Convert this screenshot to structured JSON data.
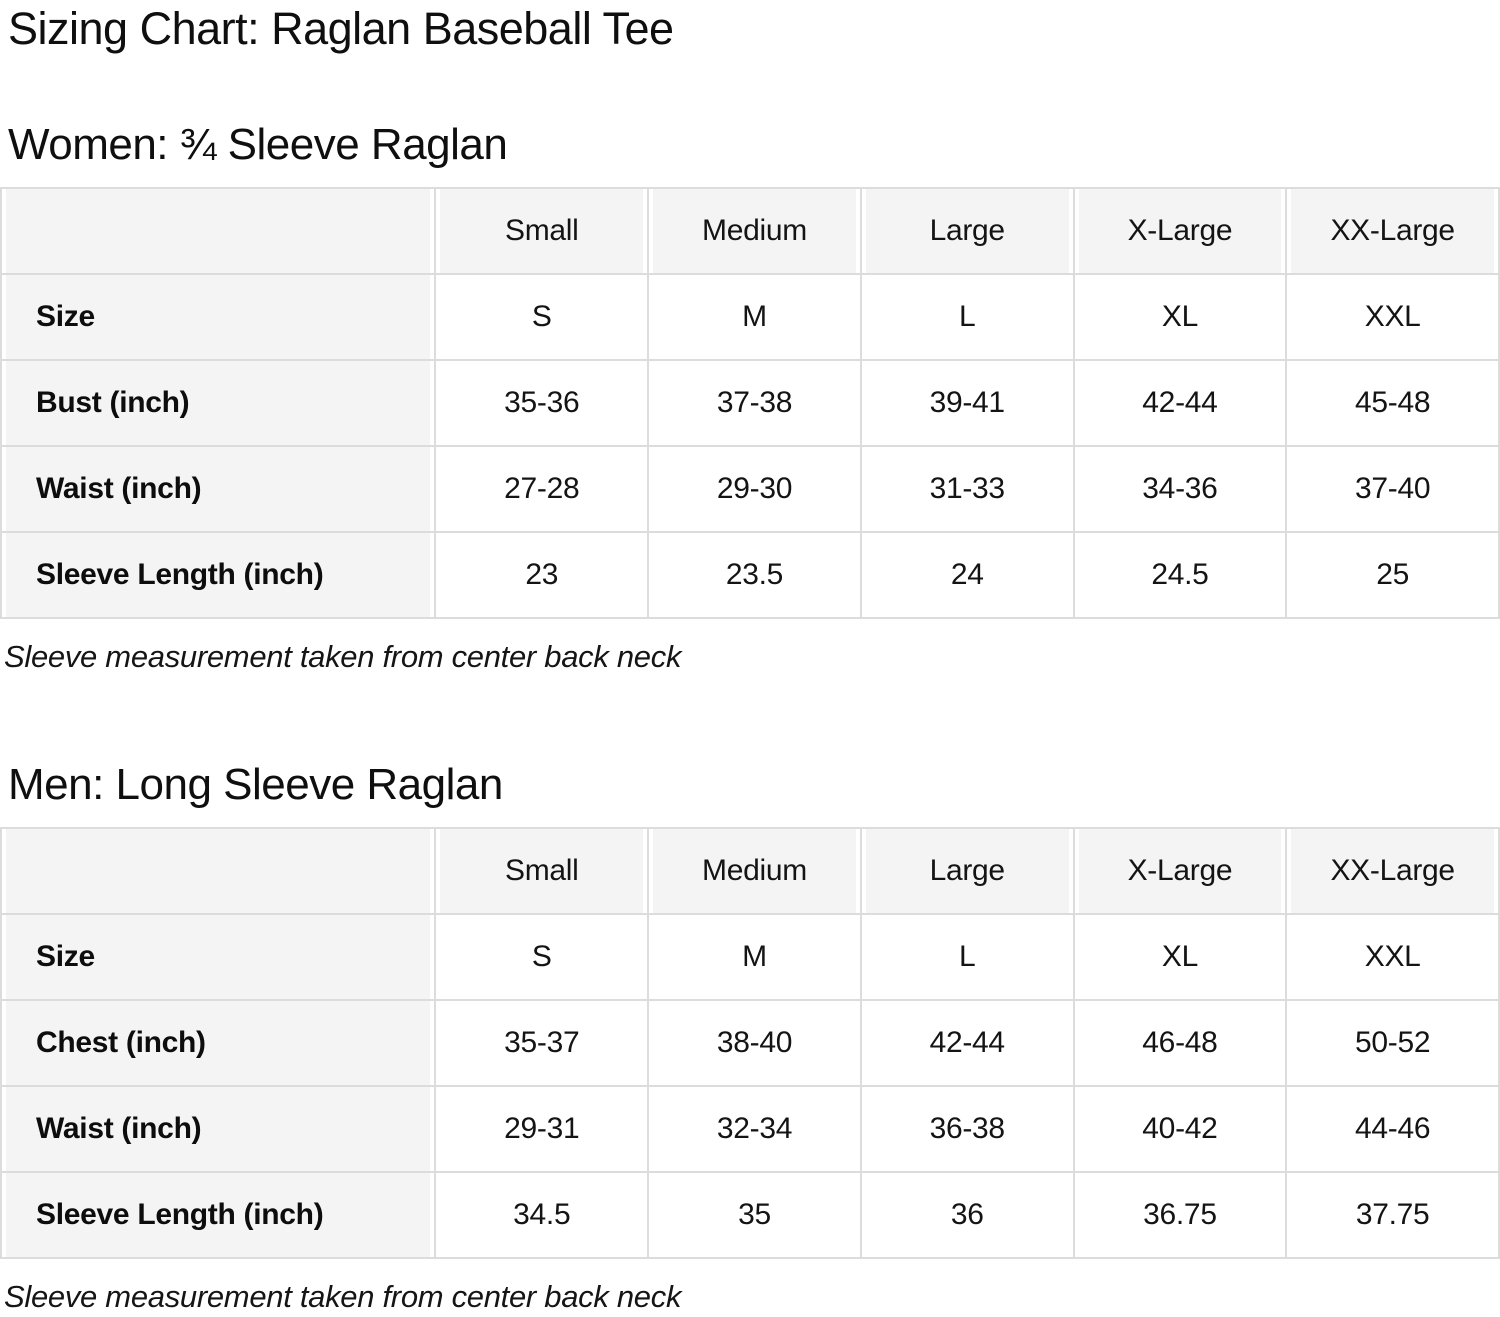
{
  "page": {
    "title": "Sizing Chart: Raglan Baseball Tee"
  },
  "colors": {
    "header_bg": "#f4f4f4",
    "grid_line": "#dcdcdc",
    "text": "#111111"
  },
  "tables": [
    {
      "heading": "Women: ¾ Sleeve Raglan",
      "columns": [
        "Small",
        "Medium",
        "Large",
        "X-Large",
        "XX-Large"
      ],
      "rows": [
        {
          "label": "Size",
          "values": [
            "S",
            "M",
            "L",
            "XL",
            "XXL"
          ]
        },
        {
          "label": "Bust (inch)",
          "values": [
            "35-36",
            "37-38",
            "39-41",
            "42-44",
            "45-48"
          ]
        },
        {
          "label": "Waist (inch)",
          "values": [
            "27-28",
            "29-30",
            "31-33",
            "34-36",
            "37-40"
          ]
        },
        {
          "label": "Sleeve Length (inch)",
          "values": [
            "23",
            "23.5",
            "24",
            "24.5",
            "25"
          ]
        }
      ],
      "note": "Sleeve measurement taken from center back neck"
    },
    {
      "heading": "Men: Long Sleeve Raglan",
      "columns": [
        "Small",
        "Medium",
        "Large",
        "X-Large",
        "XX-Large"
      ],
      "rows": [
        {
          "label": "Size",
          "values": [
            "S",
            "M",
            "L",
            "XL",
            "XXL"
          ]
        },
        {
          "label": "Chest (inch)",
          "values": [
            "35-37",
            "38-40",
            "42-44",
            "46-48",
            "50-52"
          ]
        },
        {
          "label": "Waist (inch)",
          "values": [
            "29-31",
            "32-34",
            "36-38",
            "40-42",
            "44-46"
          ]
        },
        {
          "label": "Sleeve Length (inch)",
          "values": [
            "34.5",
            "35",
            "36",
            "36.75",
            "37.75"
          ]
        }
      ],
      "note": "Sleeve measurement taken from center back neck"
    }
  ]
}
